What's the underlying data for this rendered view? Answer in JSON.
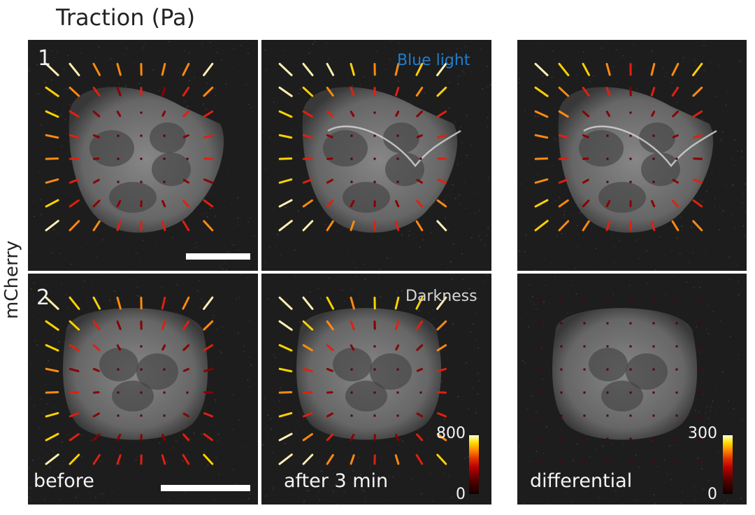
{
  "figure": {
    "title": "Traction (Pa)",
    "y_axis_label": "mCherry",
    "rows": [
      {
        "number": "1",
        "condition": "Blue light",
        "condition_color": "#1f7fd0"
      },
      {
        "number": "2",
        "condition": "Darkness",
        "condition_color": "#d6d6d6"
      }
    ],
    "columns": [
      {
        "caption": "before"
      },
      {
        "caption": "after 3 min"
      },
      {
        "caption": "differential"
      }
    ],
    "colorbars": [
      {
        "max": "800",
        "min": "0"
      },
      {
        "max": "300",
        "min": "0"
      }
    ],
    "colors": {
      "background": "#ffffff",
      "panel_background": "#1d1d1d",
      "arrow_low": "#8a0000",
      "arrow_mid": "#e02010",
      "arrow_high": "#ffd200"
    }
  }
}
